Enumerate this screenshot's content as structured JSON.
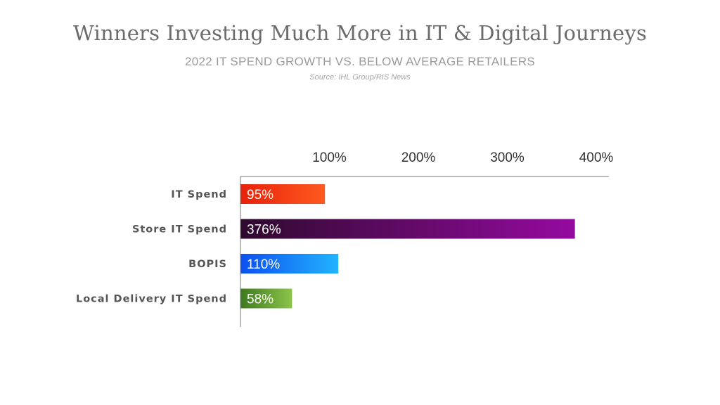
{
  "title": "Winners Investing Much More in IT & Digital Journeys",
  "subtitle": "2022 IT SPEND GROWTH VS. BELOW AVERAGE RETAILERS",
  "source": "Source: IHL Group/RIS News",
  "chart_data": {
    "type": "bar",
    "orientation": "horizontal",
    "categories": [
      "IT Spend",
      "Store IT Spend",
      "BOPIS",
      "Local Delivery IT Spend"
    ],
    "values": [
      95,
      376,
      110,
      58
    ],
    "data_labels": [
      "95%",
      "376%",
      "110%",
      "58%"
    ],
    "x_ticks": [
      100,
      200,
      300,
      400
    ],
    "x_tick_labels": [
      "100%",
      "200%",
      "300%",
      "400%"
    ],
    "xlim": [
      0,
      415
    ],
    "axis_position": "top",
    "grid": false,
    "legend": "none",
    "bar_colors": [
      {
        "start": "#e8200a",
        "end": "#ff5a1f"
      },
      {
        "start": "#2e0a2e",
        "end": "#950aa0"
      },
      {
        "start": "#0c4ff0",
        "end": "#22b4ff"
      },
      {
        "start": "#3d7a1e",
        "end": "#8cc44a"
      }
    ]
  }
}
